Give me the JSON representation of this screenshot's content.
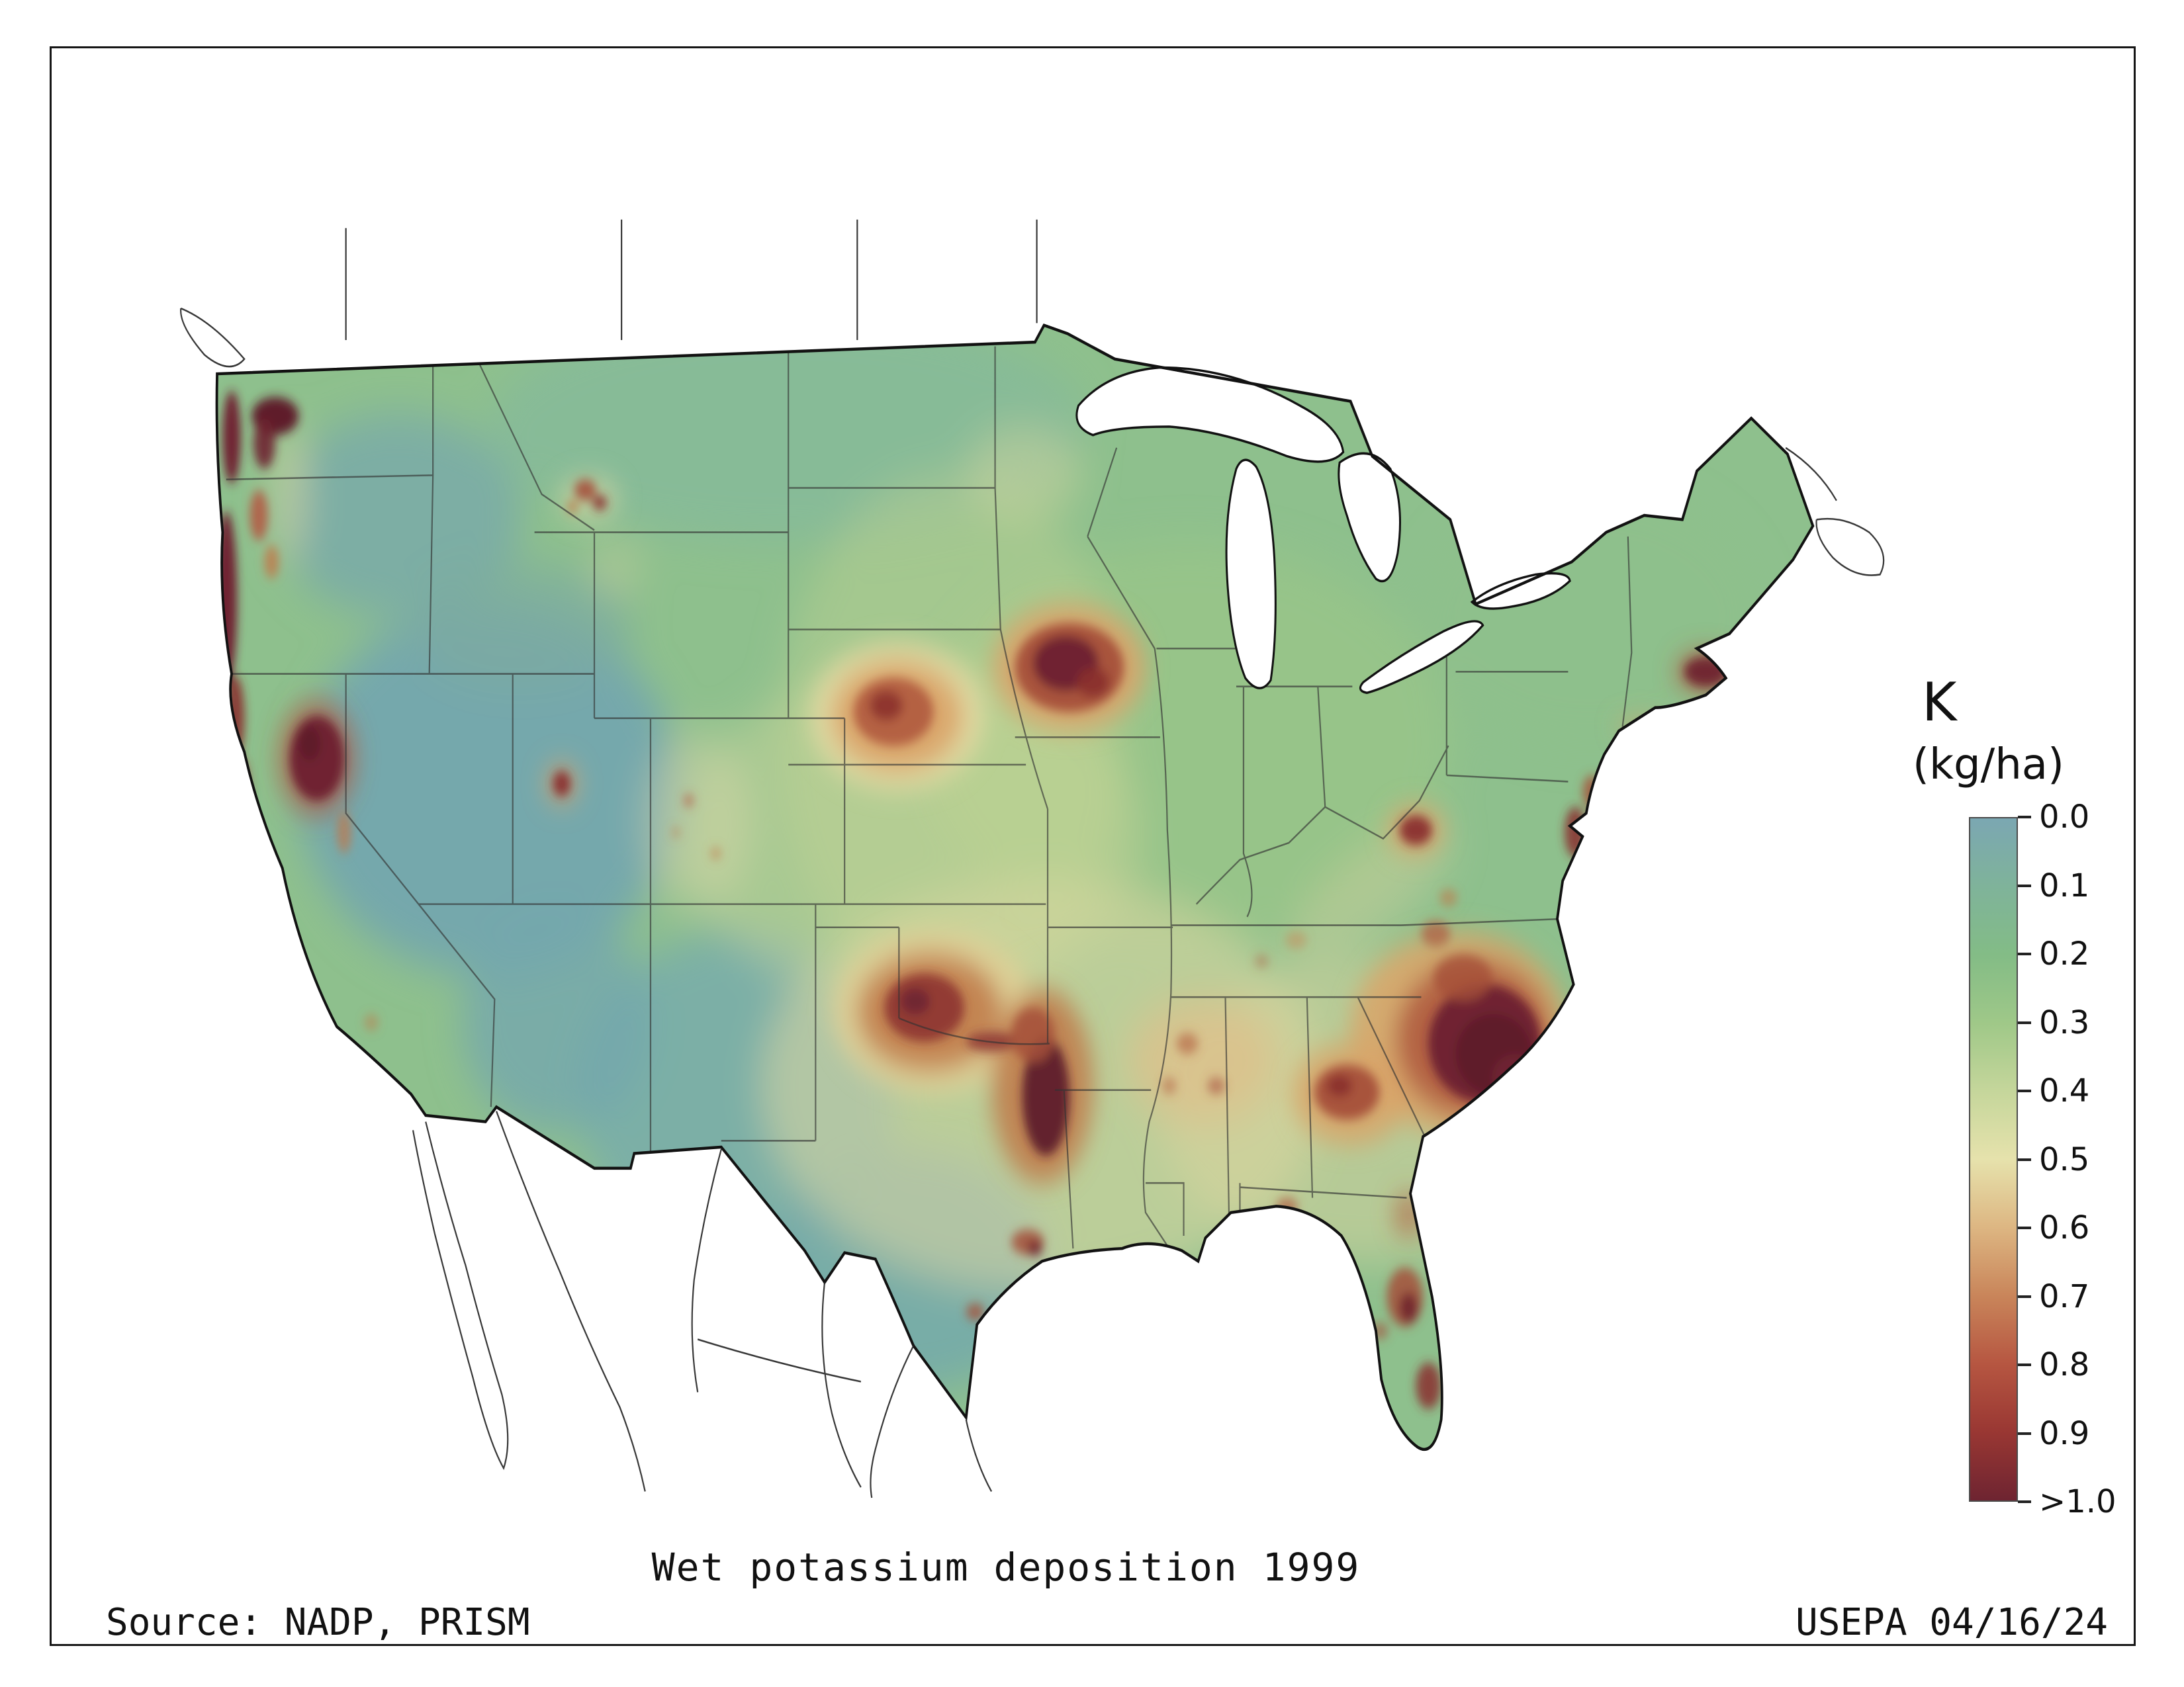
{
  "title": "Wet potassium deposition 1999",
  "source": "Source: NADP, PRISM",
  "agency_stamp": "USEPA 04/16/24",
  "legend": {
    "title": "K",
    "unit": "(kg/ha)",
    "ticks": [
      "0.0",
      "0.1",
      "0.2",
      "0.3",
      "0.4",
      "0.5",
      "0.6",
      "0.7",
      "0.8",
      "0.9",
      ">1.0"
    ]
  },
  "chart_data": {
    "type": "heatmap",
    "title": "Wet potassium deposition 1999",
    "variable": "Wet potassium deposition",
    "year": "1999",
    "units": "kg/ha",
    "region": "Contiguous United States",
    "scale_min": 0.0,
    "scale_max": 1.0,
    "scale_max_label": ">1.0",
    "colorbar_stops": [
      {
        "value": "0.0",
        "color": "#7BA7B2"
      },
      {
        "value": "0.1",
        "color": "#7FB39A"
      },
      {
        "value": "0.2",
        "color": "#83BC86"
      },
      {
        "value": "0.3",
        "color": "#9FC888"
      },
      {
        "value": "0.4",
        "color": "#C5D69B"
      },
      {
        "value": "0.5",
        "color": "#E6E2AC"
      },
      {
        "value": "0.6",
        "color": "#DDB682"
      },
      {
        "value": "0.7",
        "color": "#C9855A"
      },
      {
        "value": "0.8",
        "color": "#B65641"
      },
      {
        "value": "0.9",
        "color": "#993733"
      },
      {
        "value": ">1.0",
        "color": "#6E2431"
      }
    ],
    "high_deposition_regions": [
      "Pacific Northwest coast (Washington/Oregon)",
      "Puget Sound lowland",
      "Northeastern California",
      "Southwestern Montana",
      "Central Nebraska",
      "Central Iowa",
      "Southwestern Oklahoma / North Texas",
      "East Texas - Arkansas border",
      "Central Georgia",
      "Coastal Carolinas",
      "West Virginia",
      "Delmarva / New Jersey coast",
      "Southeastern Massachusetts / Cape Cod",
      "Central and South Florida"
    ],
    "low_deposition_regions": [
      "Great Basin (Nevada/Utah)",
      "Columbia Plateau",
      "New Mexico / West Texas",
      "South Texas"
    ]
  }
}
